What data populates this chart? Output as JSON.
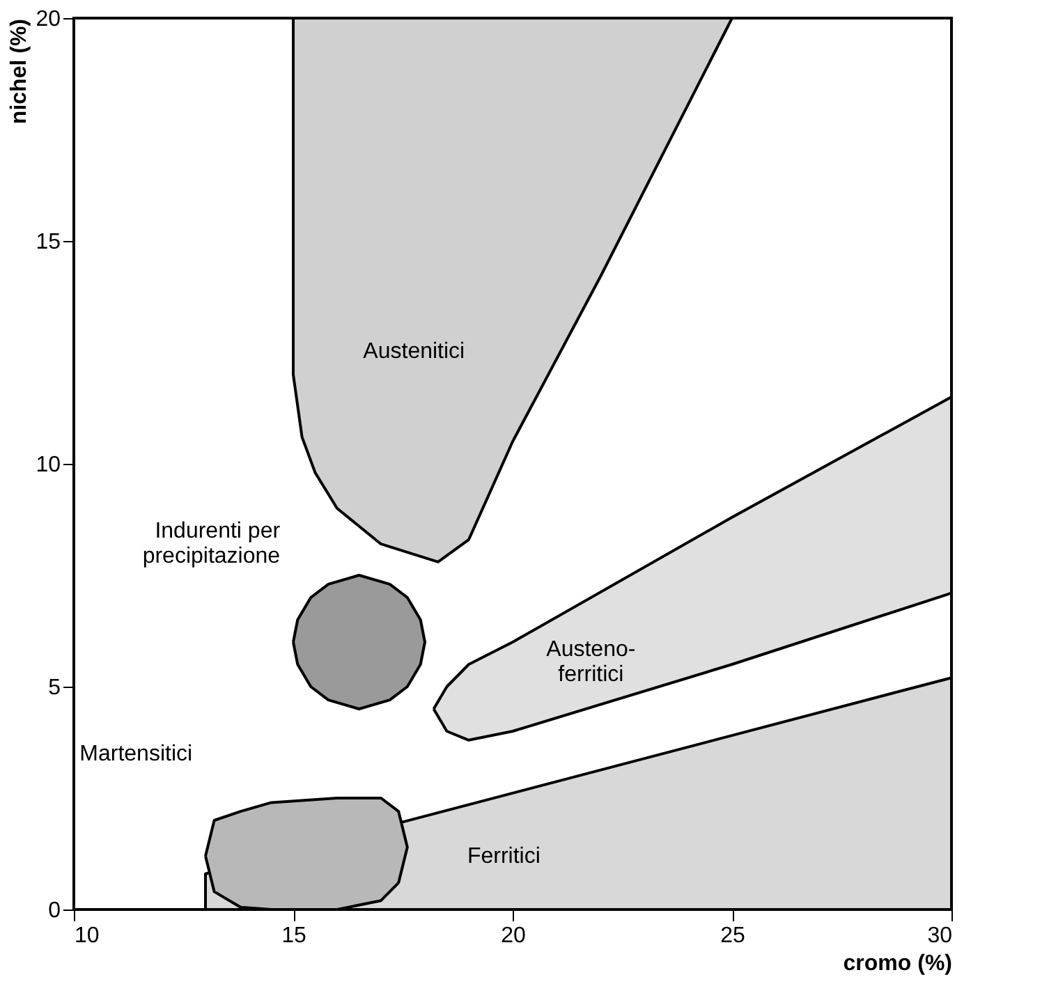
{
  "chart_data": {
    "type": "area",
    "xlabel": "cromo (%)",
    "ylabel": "nichel (%)",
    "xlim": [
      10,
      30
    ],
    "ylim": [
      0,
      20
    ],
    "xticks": [
      10,
      15,
      20,
      25,
      30
    ],
    "yticks": [
      0,
      5,
      10,
      15,
      20
    ],
    "grid": false,
    "marker": "none",
    "line_style": "solid",
    "series": [
      {
        "name": "Austenitici",
        "color": "#d0d0d0",
        "x": [
          15,
          15,
          15.2,
          15.5,
          16,
          17,
          18.3,
          19,
          20,
          22,
          25,
          15
        ],
        "values": [
          20,
          12,
          10.6,
          9.8,
          9.0,
          8.2,
          7.8,
          8.3,
          10.5,
          14.2,
          20,
          20
        ]
      },
      {
        "name": "Austeno-\nferritici",
        "color": "#e0e0e0",
        "x": [
          18.2,
          18.5,
          19,
          20,
          25,
          30,
          30,
          25,
          20,
          19,
          18.5,
          18.2
        ],
        "values": [
          4.5,
          5.0,
          5.5,
          6.0,
          8.8,
          11.5,
          7.1,
          5.5,
          4.0,
          3.8,
          4.0,
          4.5
        ]
      },
      {
        "name": "Ferritici",
        "color": "#d8d8d8",
        "x": [
          13,
          13,
          30,
          30,
          13
        ],
        "values": [
          0,
          0.8,
          5.2,
          0,
          0
        ]
      },
      {
        "name": "Martensitici",
        "color": "#b8b8b8",
        "x": [
          13.0,
          13.2,
          13.8,
          14.5,
          16,
          17,
          17.4,
          17.6,
          17.4,
          17,
          16,
          14.5,
          13.8,
          13.2,
          13.0
        ],
        "values": [
          1.2,
          2.0,
          2.2,
          2.4,
          2.5,
          2.5,
          2.2,
          1.4,
          0.6,
          0.2,
          0,
          0,
          0.05,
          0.4,
          1.2
        ]
      },
      {
        "name": "Indurenti per\nprecipitazione",
        "color": "#9a9a9a",
        "x": [
          15,
          15.1,
          15.4,
          15.8,
          16.5,
          17.2,
          17.6,
          17.9,
          18.0,
          17.9,
          17.6,
          17.2,
          16.5,
          15.8,
          15.4,
          15.1,
          15
        ],
        "values": [
          6,
          6.5,
          7,
          7.3,
          7.5,
          7.3,
          7,
          6.5,
          6,
          5.5,
          5,
          4.7,
          4.5,
          4.7,
          5,
          5.5,
          6
        ]
      }
    ]
  }
}
